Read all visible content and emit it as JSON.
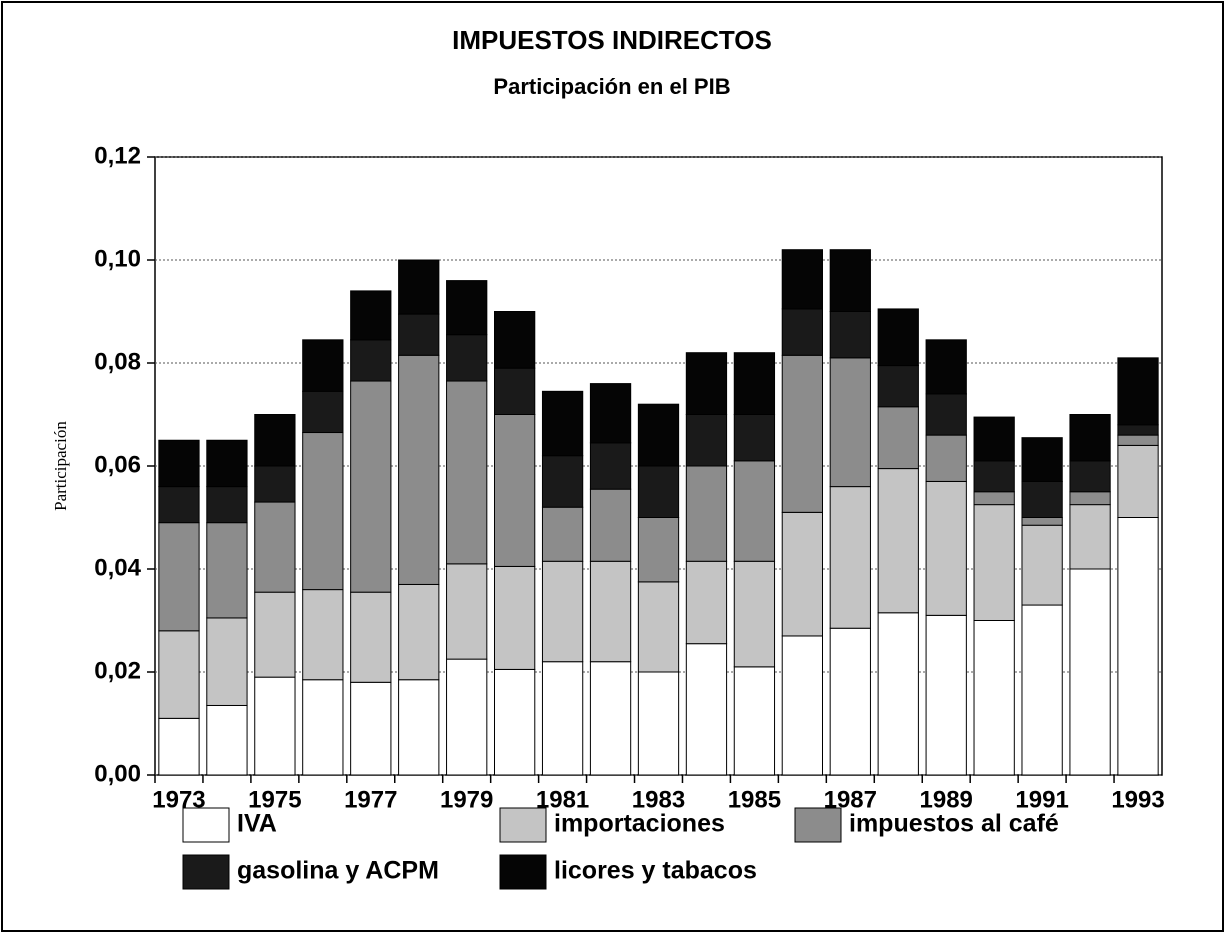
{
  "chart_data": {
    "type": "stacked_bar",
    "title": "IMPUESTOS INDIRECTOS",
    "subtitle": "Participación en el PIB",
    "y_label": "Participación",
    "categories": [
      "1973",
      null,
      "1975",
      null,
      "1977",
      null,
      "1979",
      null,
      "1981",
      null,
      "1983",
      null,
      "1985",
      null,
      "1987",
      null,
      "1989",
      null,
      "1991",
      null,
      "1993"
    ],
    "ylim": [
      0,
      0.12
    ],
    "yticks": [
      {
        "value": 0,
        "label": "0,00"
      },
      {
        "value": 0.02,
        "label": "0,02"
      },
      {
        "value": 0.04,
        "label": "0,04"
      },
      {
        "value": 0.06,
        "label": "0,06"
      },
      {
        "value": 0.08,
        "label": "0,08"
      },
      {
        "value": 0.1,
        "label": "0,10"
      },
      {
        "value": 0.12,
        "label": "0,12"
      }
    ],
    "grid": true,
    "series": [
      {
        "name": "IVA",
        "color": "#ffffff",
        "values": [
          0.011,
          0.0135,
          0.019,
          0.0185,
          0.018,
          0.0185,
          0.0225,
          0.0205,
          0.022,
          0.022,
          0.02,
          0.0255,
          0.021,
          0.027,
          0.0285,
          0.0315,
          0.031,
          0.03,
          0.033,
          0.04,
          0.05
        ]
      },
      {
        "name": "importaciones",
        "color": "#c4c4c4",
        "values": [
          0.017,
          0.017,
          0.0165,
          0.0175,
          0.0175,
          0.0185,
          0.0185,
          0.02,
          0.0195,
          0.0195,
          0.0175,
          0.016,
          0.0205,
          0.024,
          0.0275,
          0.028,
          0.026,
          0.0225,
          0.0155,
          0.0125,
          0.014
        ]
      },
      {
        "name": "impuestos al café",
        "color": "#8c8c8c",
        "values": [
          0.021,
          0.0185,
          0.0175,
          0.0305,
          0.041,
          0.0445,
          0.0355,
          0.0295,
          0.0105,
          0.014,
          0.0125,
          0.0185,
          0.0195,
          0.0305,
          0.025,
          0.012,
          0.009,
          0.0025,
          0.0015,
          0.0025,
          0.002
        ]
      },
      {
        "name": "gasolina y ACPM",
        "color": "#1a1a1a",
        "values": [
          0.007,
          0.007,
          0.007,
          0.008,
          0.008,
          0.008,
          0.009,
          0.009,
          0.01,
          0.009,
          0.01,
          0.01,
          0.009,
          0.009,
          0.009,
          0.008,
          0.008,
          0.006,
          0.007,
          0.006,
          0.002
        ]
      },
      {
        "name": "licores y tabacos",
        "color": "#050505",
        "values": [
          0.009,
          0.009,
          0.01,
          0.01,
          0.0095,
          0.0105,
          0.0105,
          0.011,
          0.0125,
          0.0115,
          0.012,
          0.012,
          0.012,
          0.0115,
          0.012,
          0.011,
          0.0105,
          0.0085,
          0.0085,
          0.009,
          0.013
        ]
      }
    ]
  }
}
